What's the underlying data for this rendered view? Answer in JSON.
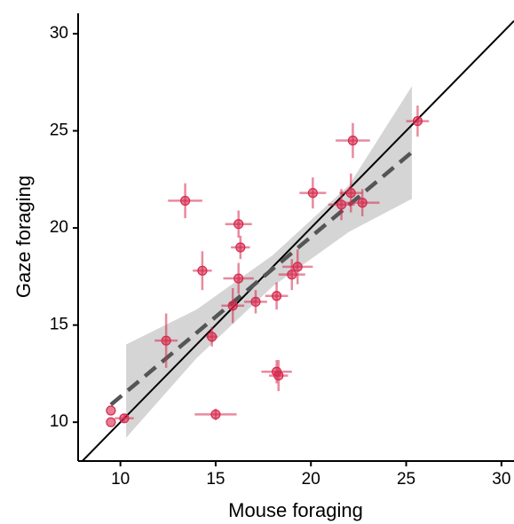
{
  "chart_data": {
    "type": "scatter",
    "x_label": "Mouse foraging",
    "y_label": "Gaze foraging",
    "xlim": [
      7.78,
      30.66
    ],
    "ylim": [
      8.0,
      31.05
    ],
    "xticks": [
      10,
      15,
      20,
      25,
      30
    ],
    "yticks": [
      10,
      15,
      20,
      25,
      30
    ],
    "identity_line": true,
    "series": [
      {
        "color": "#d6294d",
        "x": [
          9.5,
          9.5,
          10.2,
          12.4,
          13.4,
          14.3,
          14.8,
          15.0,
          15.9,
          16.2,
          16.2,
          16.3,
          17.1,
          18.2,
          18.2,
          18.3,
          19.0,
          19.3,
          20.1,
          21.6,
          22.2,
          22.1,
          22.7,
          25.6
        ],
        "values": [
          10.6,
          10.0,
          10.2,
          14.2,
          21.4,
          17.8,
          14.4,
          10.4,
          16.0,
          20.2,
          17.4,
          19.0,
          16.2,
          16.5,
          12.6,
          12.4,
          17.6,
          18.0,
          21.8,
          21.2,
          24.5,
          21.8,
          21.3,
          25.5
        ],
        "xerr": [
          null,
          null,
          0.5,
          0.6,
          0.9,
          0.5,
          0.3,
          1.1,
          0.6,
          0.7,
          0.8,
          0.5,
          0.6,
          0.6,
          0.8,
          0.5,
          0.7,
          0.8,
          0.7,
          0.7,
          0.9,
          0.6,
          0.9,
          0.6
        ],
        "yerr": [
          null,
          null,
          0.2,
          1.4,
          0.9,
          1.0,
          0.5,
          0.3,
          0.9,
          0.7,
          0.8,
          0.6,
          0.6,
          0.7,
          0.6,
          0.8,
          0.8,
          0.9,
          0.8,
          0.8,
          0.9,
          1.0,
          0.7,
          0.8
        ]
      }
    ],
    "fit": {
      "color": "#555555",
      "x": [
        9.5,
        25.3
      ],
      "values": [
        10.9,
        23.9
      ]
    },
    "band": {
      "color": "#d0d0d0",
      "x": [
        10.3,
        14,
        18,
        22,
        25.3
      ],
      "lower": [
        9.2,
        13.3,
        17.0,
        19.8,
        21.5
      ],
      "upper": [
        14.0,
        15.8,
        18.6,
        22.2,
        27.3
      ]
    }
  }
}
